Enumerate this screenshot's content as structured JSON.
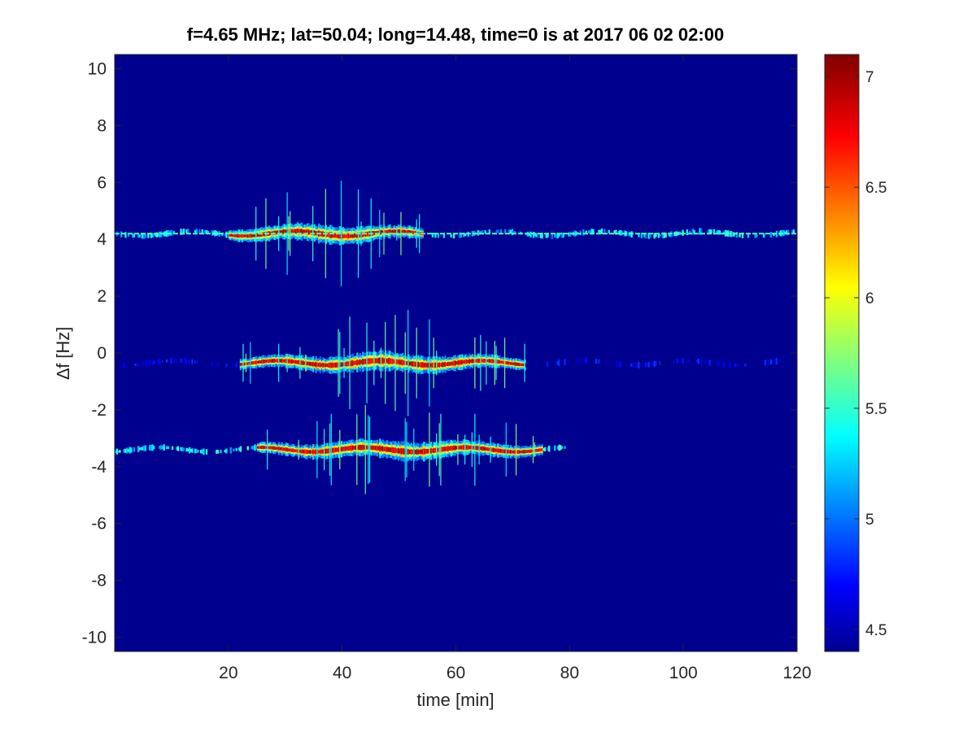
{
  "chart_data": {
    "type": "heatmap",
    "title": "f=4.65 MHz;  lat=50.04; long=14.48, time=0 is at 2017 06 02 02:00",
    "xlabel": "time [min]",
    "ylabel": "∆f [Hz]",
    "xlim": [
      0,
      120
    ],
    "ylim": [
      -10.5,
      10.5
    ],
    "x_ticks": [
      20,
      40,
      60,
      80,
      100,
      120
    ],
    "x_tick_labels": [
      "20",
      "40",
      "60",
      "80",
      "100",
      "120"
    ],
    "y_ticks": [
      10,
      8,
      6,
      4,
      2,
      0,
      -2,
      -4,
      -6,
      -8,
      -10
    ],
    "y_tick_labels": [
      "10",
      "8",
      "6",
      "4",
      "2",
      "0",
      "-2",
      "-4",
      "-6",
      "-8",
      "-10"
    ],
    "colorbar": {
      "colormap": "jet",
      "clim": [
        4.4,
        7.1
      ],
      "ticks": [
        7,
        6.5,
        6,
        5.5,
        5,
        4.5
      ],
      "tick_labels": [
        "7",
        "6.5",
        "6",
        "5.5",
        "5",
        "4.5"
      ]
    },
    "background_value": 4.45,
    "traces": [
      {
        "name": "",
        "df_hz": 4.2,
        "x_start": 0,
        "x_end": 120,
        "peak_start": 20,
        "peak_end": 54,
        "peak_value": 7.0,
        "tail_value": 5.6
      },
      {
        "name": "",
        "df_hz": -0.35,
        "x_start": 0,
        "x_end": 117,
        "peak_start": 22,
        "peak_end": 72,
        "peak_value": 7.0,
        "tail_value": 4.9
      },
      {
        "name": "",
        "df_hz": -3.4,
        "x_start": 0,
        "x_end": 79,
        "peak_start": 25,
        "peak_end": 75,
        "peak_value": 7.0,
        "tail_value": 5.7
      }
    ]
  }
}
